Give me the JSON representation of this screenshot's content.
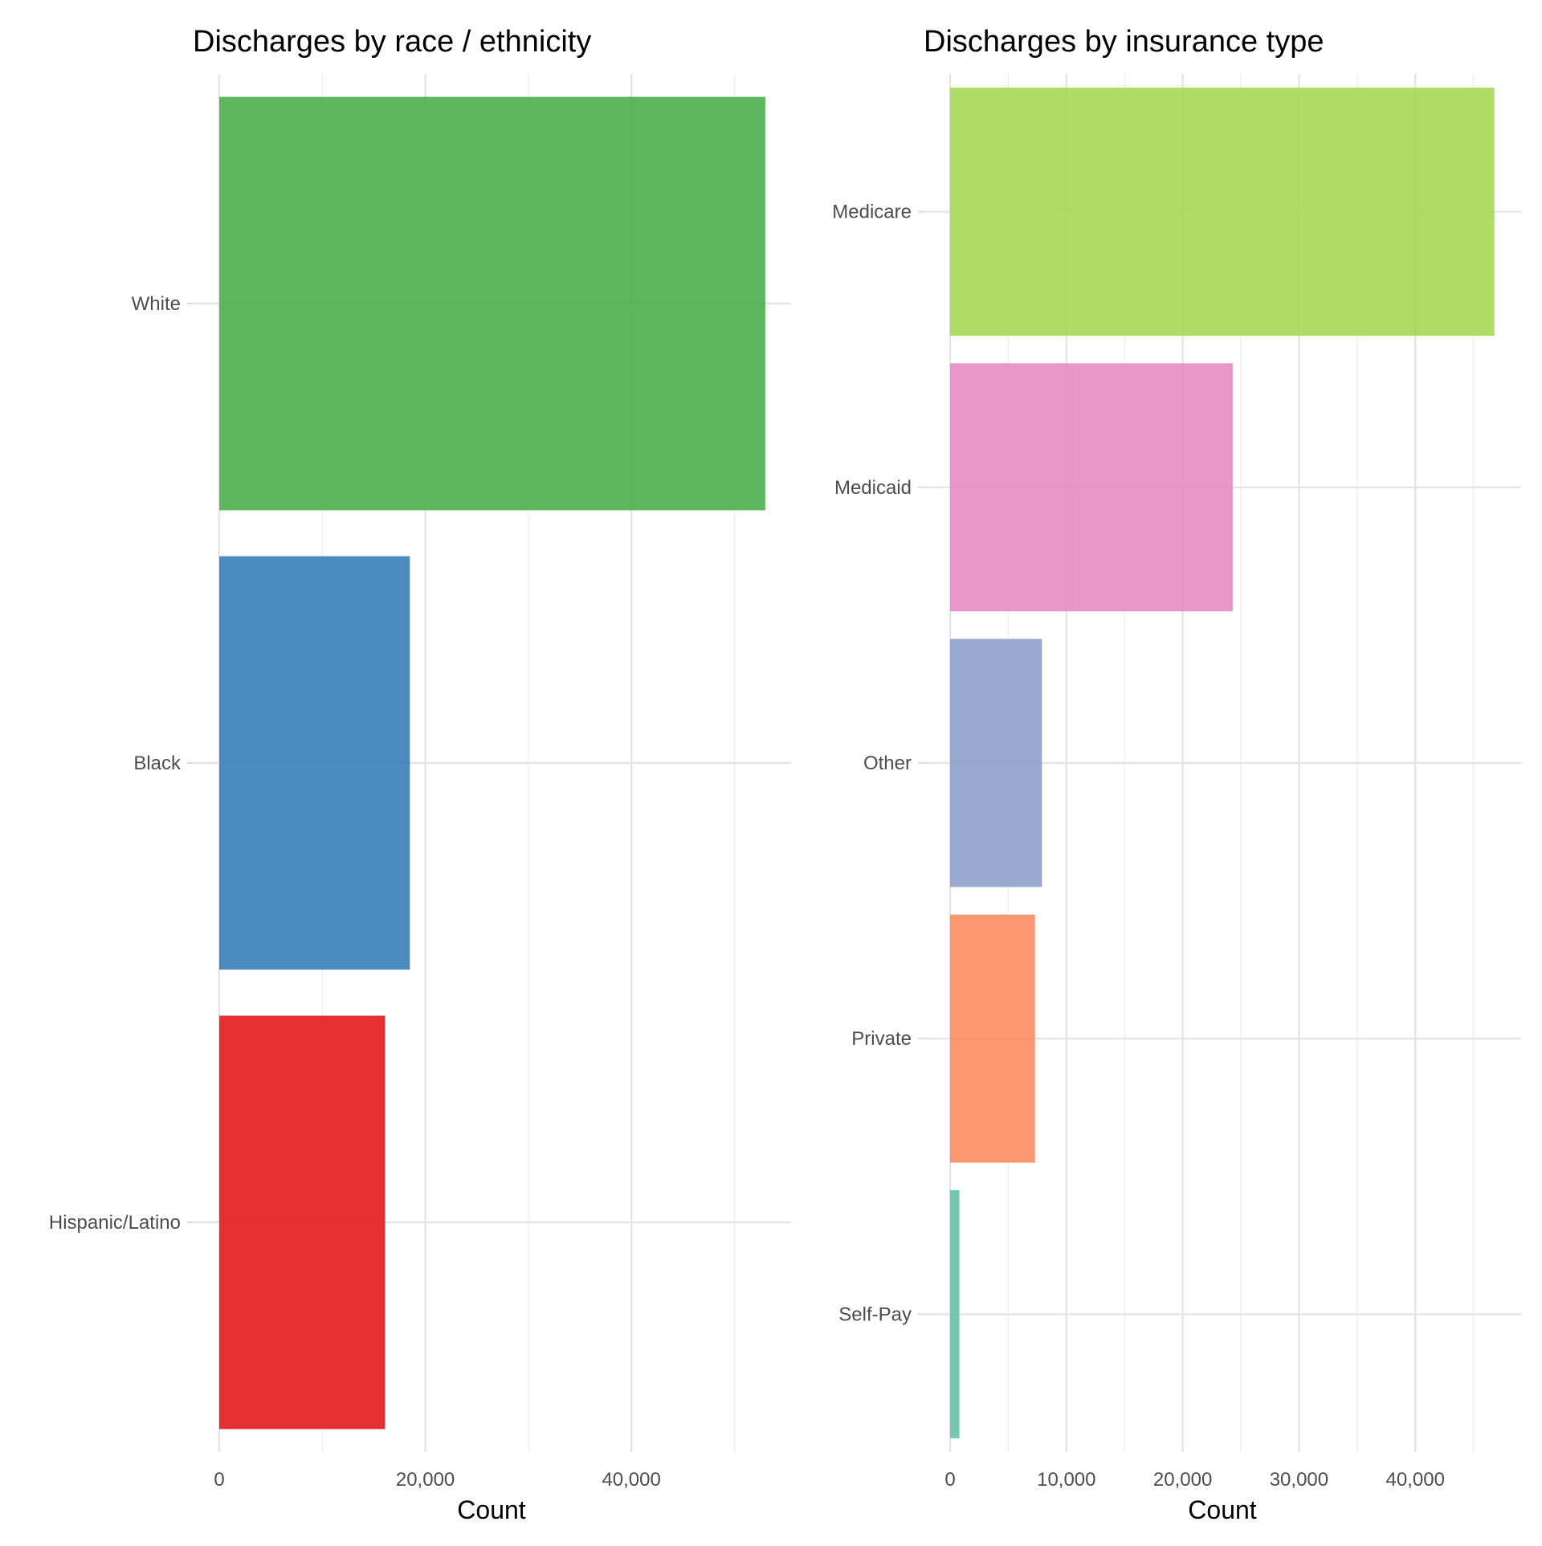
{
  "chart_data": [
    {
      "type": "bar",
      "orientation": "horizontal",
      "title": "Discharges by race / ethnicity",
      "xlabel": "Count",
      "ylabel": "",
      "categories": [
        "White",
        "Black",
        "Hispanic/Latino"
      ],
      "values": [
        53000,
        18500,
        16100
      ],
      "colors": [
        "#4DAF4A",
        "#377EB8",
        "#E41A1C"
      ],
      "xlim": [
        0,
        55500
      ],
      "x_ticks": [
        0,
        20000,
        40000
      ],
      "x_tick_labels": [
        "0",
        "20,000",
        "40,000"
      ],
      "grid": true,
      "legend": "none"
    },
    {
      "type": "bar",
      "orientation": "horizontal",
      "title": "Discharges by insurance type",
      "xlabel": "Count",
      "ylabel": "",
      "categories": [
        "Medicare",
        "Medicaid",
        "Other",
        "Private",
        "Self-Pay"
      ],
      "values": [
        46800,
        24300,
        7900,
        7300,
        800
      ],
      "colors": [
        "#A6D854",
        "#E78AC3",
        "#8DA0CB",
        "#FC8D62",
        "#66C2A5"
      ],
      "xlim": [
        0,
        49100
      ],
      "x_ticks": [
        0,
        10000,
        20000,
        30000,
        40000
      ],
      "x_tick_labels": [
        "0",
        "10,000",
        "20,000",
        "30,000",
        "40,000"
      ],
      "grid": true,
      "legend": "none"
    }
  ]
}
